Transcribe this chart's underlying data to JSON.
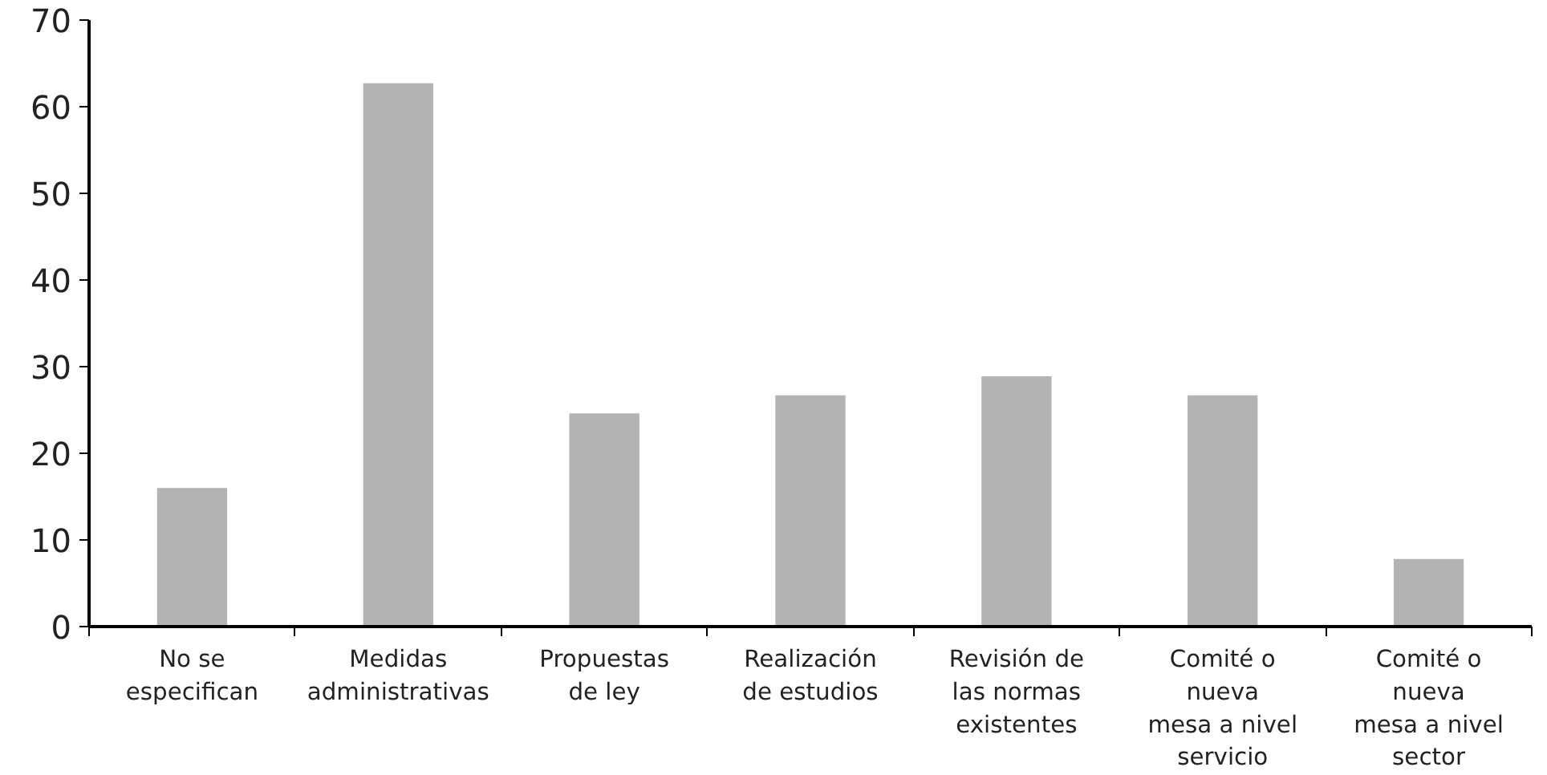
{
  "chart_data": {
    "type": "bar",
    "categories": [
      "No se\nespecifican",
      "Medidas\nadministrativas",
      "Propuestas\nde ley",
      "Realización\nde estudios",
      "Revisión de\nlas normas\nexistentes",
      "Comité o\nnueva\nmesa a nivel\nservicio",
      "Comité o\nnueva\nmesa a nivel\nsector"
    ],
    "values": [
      16,
      62.7,
      24.6,
      26.7,
      28.9,
      26.7,
      7.8
    ],
    "color": "#b3b3b3",
    "ylim": [
      0,
      70
    ],
    "yticks": [
      0,
      10,
      20,
      30,
      40,
      50,
      60,
      70
    ],
    "grid": false
  }
}
